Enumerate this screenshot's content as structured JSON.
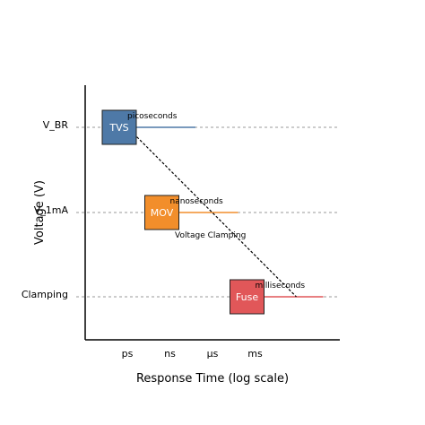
{
  "chart_data": {
    "type": "scatter",
    "title": "",
    "xlabel": "Response Time (log scale)",
    "ylabel": "Voltage (V)",
    "x_scale": "log",
    "categories_x": [
      "ps",
      "ns",
      "µs",
      "ms"
    ],
    "categories_y": [
      "Clamping",
      "V_1mA",
      "V_BR"
    ],
    "grid": "dashed horizontal reference lines at each y level",
    "devices": [
      {
        "name": "TVS",
        "x": "ps",
        "y": "V_BR",
        "timescale": "picoseconds",
        "color": "#4e79a7"
      },
      {
        "name": "MOV",
        "x": "ns",
        "y": "V_1mA",
        "timescale": "nanoseconds",
        "color": "#f28e2b"
      },
      {
        "name": "Fuse",
        "x": "ms",
        "y": "Clamping",
        "timescale": "milliseconds",
        "color": "#e15759"
      }
    ],
    "trend_line": {
      "style": "dotted",
      "from": "TVS",
      "to": "Fuse"
    },
    "annotation": "Voltage Clamping"
  }
}
